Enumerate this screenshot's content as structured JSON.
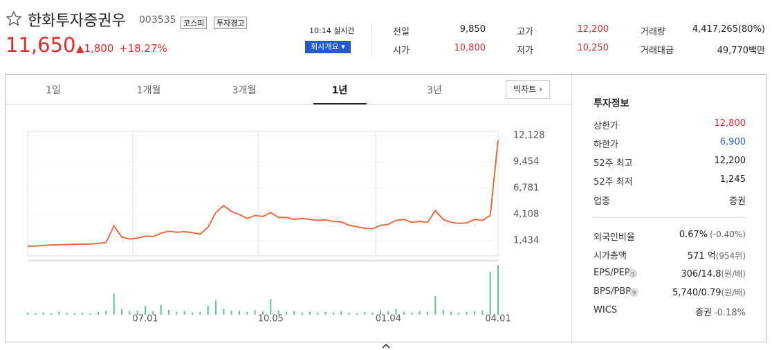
{
  "header": {
    "title": "한화투자증권우",
    "code": "003535",
    "badges": [
      "코스피",
      "투자경고"
    ],
    "price": "11,650",
    "change": "▲1,800",
    "change_rate": "+18.27%",
    "time": "10:14 실시간",
    "company_button": "회사개요"
  },
  "quote": [
    {
      "label": "전일",
      "value": "9,850"
    },
    {
      "label": "시가",
      "value": "10,800"
    },
    {
      "label": "고가",
      "value": "12,200"
    },
    {
      "label": "저가",
      "value": "10,250"
    },
    {
      "label": "거래량",
      "value": "4,417,265(80%)"
    },
    {
      "label": "거래대금",
      "value": "49,770백만"
    }
  ],
  "tabs": [
    "1일",
    "1개월",
    "3개월",
    "1년",
    "3년"
  ],
  "selected_tab": "1년",
  "big_chart_button": "빅차트",
  "chart_data": {
    "type": "line",
    "x": [
      null,
      null,
      null,
      null,
      null,
      null,
      null,
      null,
      null,
      null,
      null,
      null,
      null,
      null,
      null,
      "07.01",
      null,
      null,
      null,
      null,
      null,
      null,
      null,
      null,
      null,
      null,
      null,
      null,
      null,
      null,
      null,
      "10.05",
      null,
      null,
      null,
      null,
      null,
      null,
      null,
      null,
      null,
      null,
      null,
      null,
      null,
      null,
      "01.04",
      null,
      null,
      null,
      null,
      null,
      null,
      null,
      null,
      null,
      null,
      null,
      null,
      null,
      "04.01"
    ],
    "series": [
      {
        "color": "#ef6a3e",
        "values": [
          870,
          900,
          950,
          1000,
          1020,
          1050,
          1080,
          1080,
          1100,
          1150,
          1250,
          2950,
          1800,
          1600,
          1700,
          1900,
          1850,
          2200,
          2400,
          2300,
          2350,
          2250,
          2100,
          2800,
          4300,
          5000,
          4400,
          4100,
          3700,
          4000,
          3900,
          4300,
          3800,
          3800,
          3600,
          3700,
          3600,
          3500,
          3550,
          3400,
          3350,
          3000,
          2850,
          2700,
          2650,
          3000,
          3100,
          3500,
          3600,
          3300,
          3400,
          3300,
          4500,
          3600,
          3300,
          3200,
          3250,
          3600,
          3500,
          4000,
          11650
        ]
      },
      {
        "type": "bar",
        "color": "#5cc98a",
        "values": [
          3,
          2,
          3,
          2,
          4,
          3,
          2,
          3,
          2,
          4,
          6,
          30,
          8,
          5,
          6,
          12,
          5,
          14,
          7,
          4,
          5,
          3,
          4,
          13,
          20,
          8,
          6,
          5,
          4,
          7,
          5,
          22,
          6,
          4,
          5,
          3,
          4,
          3,
          4,
          3,
          5,
          3,
          2,
          4,
          3,
          6,
          5,
          8,
          4,
          3,
          5,
          4,
          26,
          7,
          4,
          3,
          4,
          5,
          6,
          60,
          70
        ]
      }
    ],
    "ylim": [
      0,
      12550
    ],
    "yticks": [
      {
        "value": 1434,
        "label": "1,434"
      },
      {
        "value": 4108,
        "label": "4,108"
      },
      {
        "value": 6781,
        "label": "6,781"
      },
      {
        "value": 9454,
        "label": "9,454"
      },
      {
        "value": 12128,
        "label": "12,128"
      }
    ],
    "grid": true
  },
  "info": {
    "title": "투자정보",
    "rows": [
      {
        "label": "상한가",
        "value": "12,800"
      },
      {
        "label": "하한가",
        "value": "6,900"
      },
      {
        "label": "52주 최고",
        "value": "12,200"
      },
      {
        "label": "52주 최저",
        "value": "1,245"
      },
      {
        "label": "업종",
        "value": "증권"
      },
      {
        "label": "외국인비율",
        "value": "0.67%",
        "extra": "(-0.40%)"
      },
      {
        "label": "시가총액",
        "value": "571 억",
        "extra": "(954위)"
      },
      {
        "label": "EPS/PER",
        "value": "306/14.8",
        "extra": "(원/배)"
      },
      {
        "label": "BPS/PBR",
        "value": "5,740/0.79",
        "extra": "(원/배)"
      },
      {
        "label": "WICS",
        "value": "증권",
        "extra": "-0.18%"
      }
    ]
  }
}
